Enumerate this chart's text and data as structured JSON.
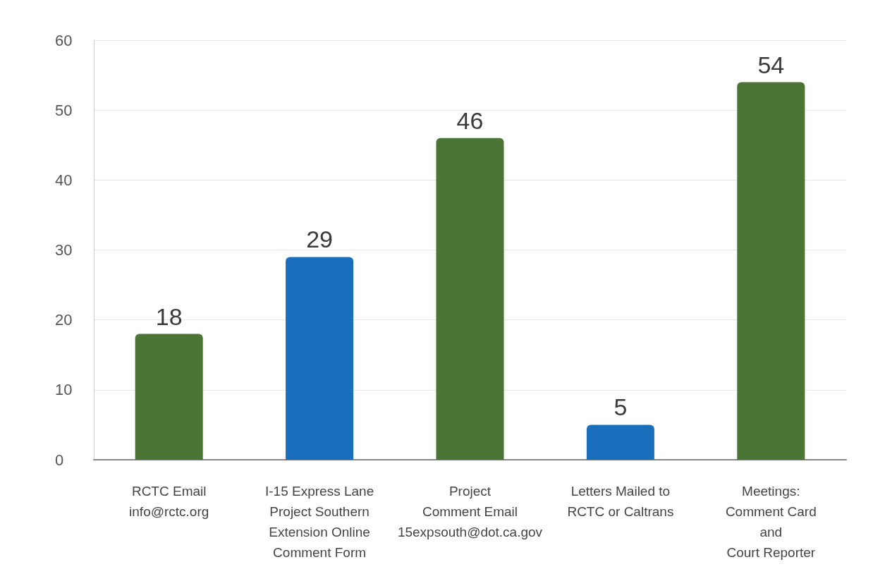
{
  "chart_data": {
    "type": "bar",
    "categories": [
      "RCTC Email\ninfo@rctc.org",
      "I-15 Express Lane\nProject Southern\nExtension Online\nComment Form",
      "Project\nComment Email\n15expsouth@dot.ca.gov",
      "Letters Mailed to\nRCTC or Caltrans",
      "Meetings:\nComment Card\nand\nCourt Reporter"
    ],
    "values": [
      18,
      29,
      46,
      5,
      54
    ],
    "colors": [
      "#4a7535",
      "#1a6fbd",
      "#4a7535",
      "#1a6fbd",
      "#4a7535"
    ],
    "ylim": [
      0,
      60
    ],
    "yticks": [
      0,
      10,
      20,
      30,
      40,
      50,
      60
    ],
    "grid": "y",
    "data_labels": true
  }
}
